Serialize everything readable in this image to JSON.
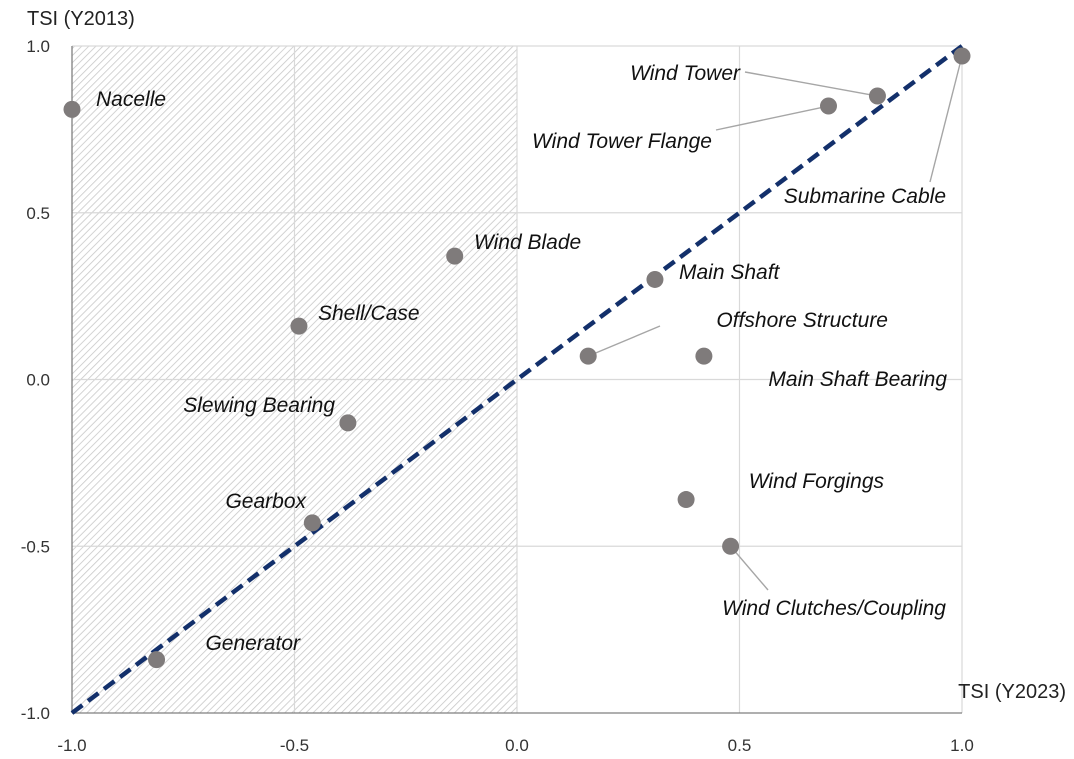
{
  "chart_data": {
    "type": "scatter",
    "xlabel": "TSI (Y2023)",
    "ylabel": "TSI (Y2013)",
    "xlim": [
      -1.0,
      1.0
    ],
    "ylim": [
      -1.0,
      1.0
    ],
    "x_ticks": [
      "-1.0",
      "-0.5",
      "0.0",
      "0.5",
      "1.0"
    ],
    "y_ticks": [
      "-1.0",
      "-0.5",
      "0.0",
      "0.5",
      "1.0"
    ],
    "grid": true,
    "shaded_region": "x < 0 (hatched)",
    "reference_line": "y = x (dashed)",
    "colors": {
      "point": "#7f7b7b",
      "diagonal": "#13306b",
      "grid": "#d9d9d9",
      "axis": "#7f7f7f",
      "hatch": "#c8c8c8"
    },
    "points": [
      {
        "label": "Nacelle",
        "x": -1.0,
        "y": 0.81
      },
      {
        "label": "Wind Tower",
        "x": 0.81,
        "y": 0.85
      },
      {
        "label": "Wind Tower Flange",
        "x": 0.7,
        "y": 0.82
      },
      {
        "label": "Submarine Cable",
        "x": 1.0,
        "y": 0.97
      },
      {
        "label": "Wind Blade",
        "x": -0.14,
        "y": 0.37
      },
      {
        "label": "Main Shaft",
        "x": 0.31,
        "y": 0.3
      },
      {
        "label": "Shell/Case",
        "x": -0.49,
        "y": 0.16
      },
      {
        "label": "Offshore Structure",
        "x": 0.16,
        "y": 0.07
      },
      {
        "label": "Main Shaft Bearing",
        "x": 0.42,
        "y": 0.07
      },
      {
        "label": "Slewing Bearing",
        "x": -0.38,
        "y": -0.13
      },
      {
        "label": "Wind Forgings",
        "x": 0.38,
        "y": -0.36
      },
      {
        "label": "Gearbox",
        "x": -0.46,
        "y": -0.43
      },
      {
        "label": "Wind Clutches/Coupling",
        "x": 0.48,
        "y": -0.5
      },
      {
        "label": "Generator",
        "x": -0.81,
        "y": -0.84
      }
    ]
  }
}
